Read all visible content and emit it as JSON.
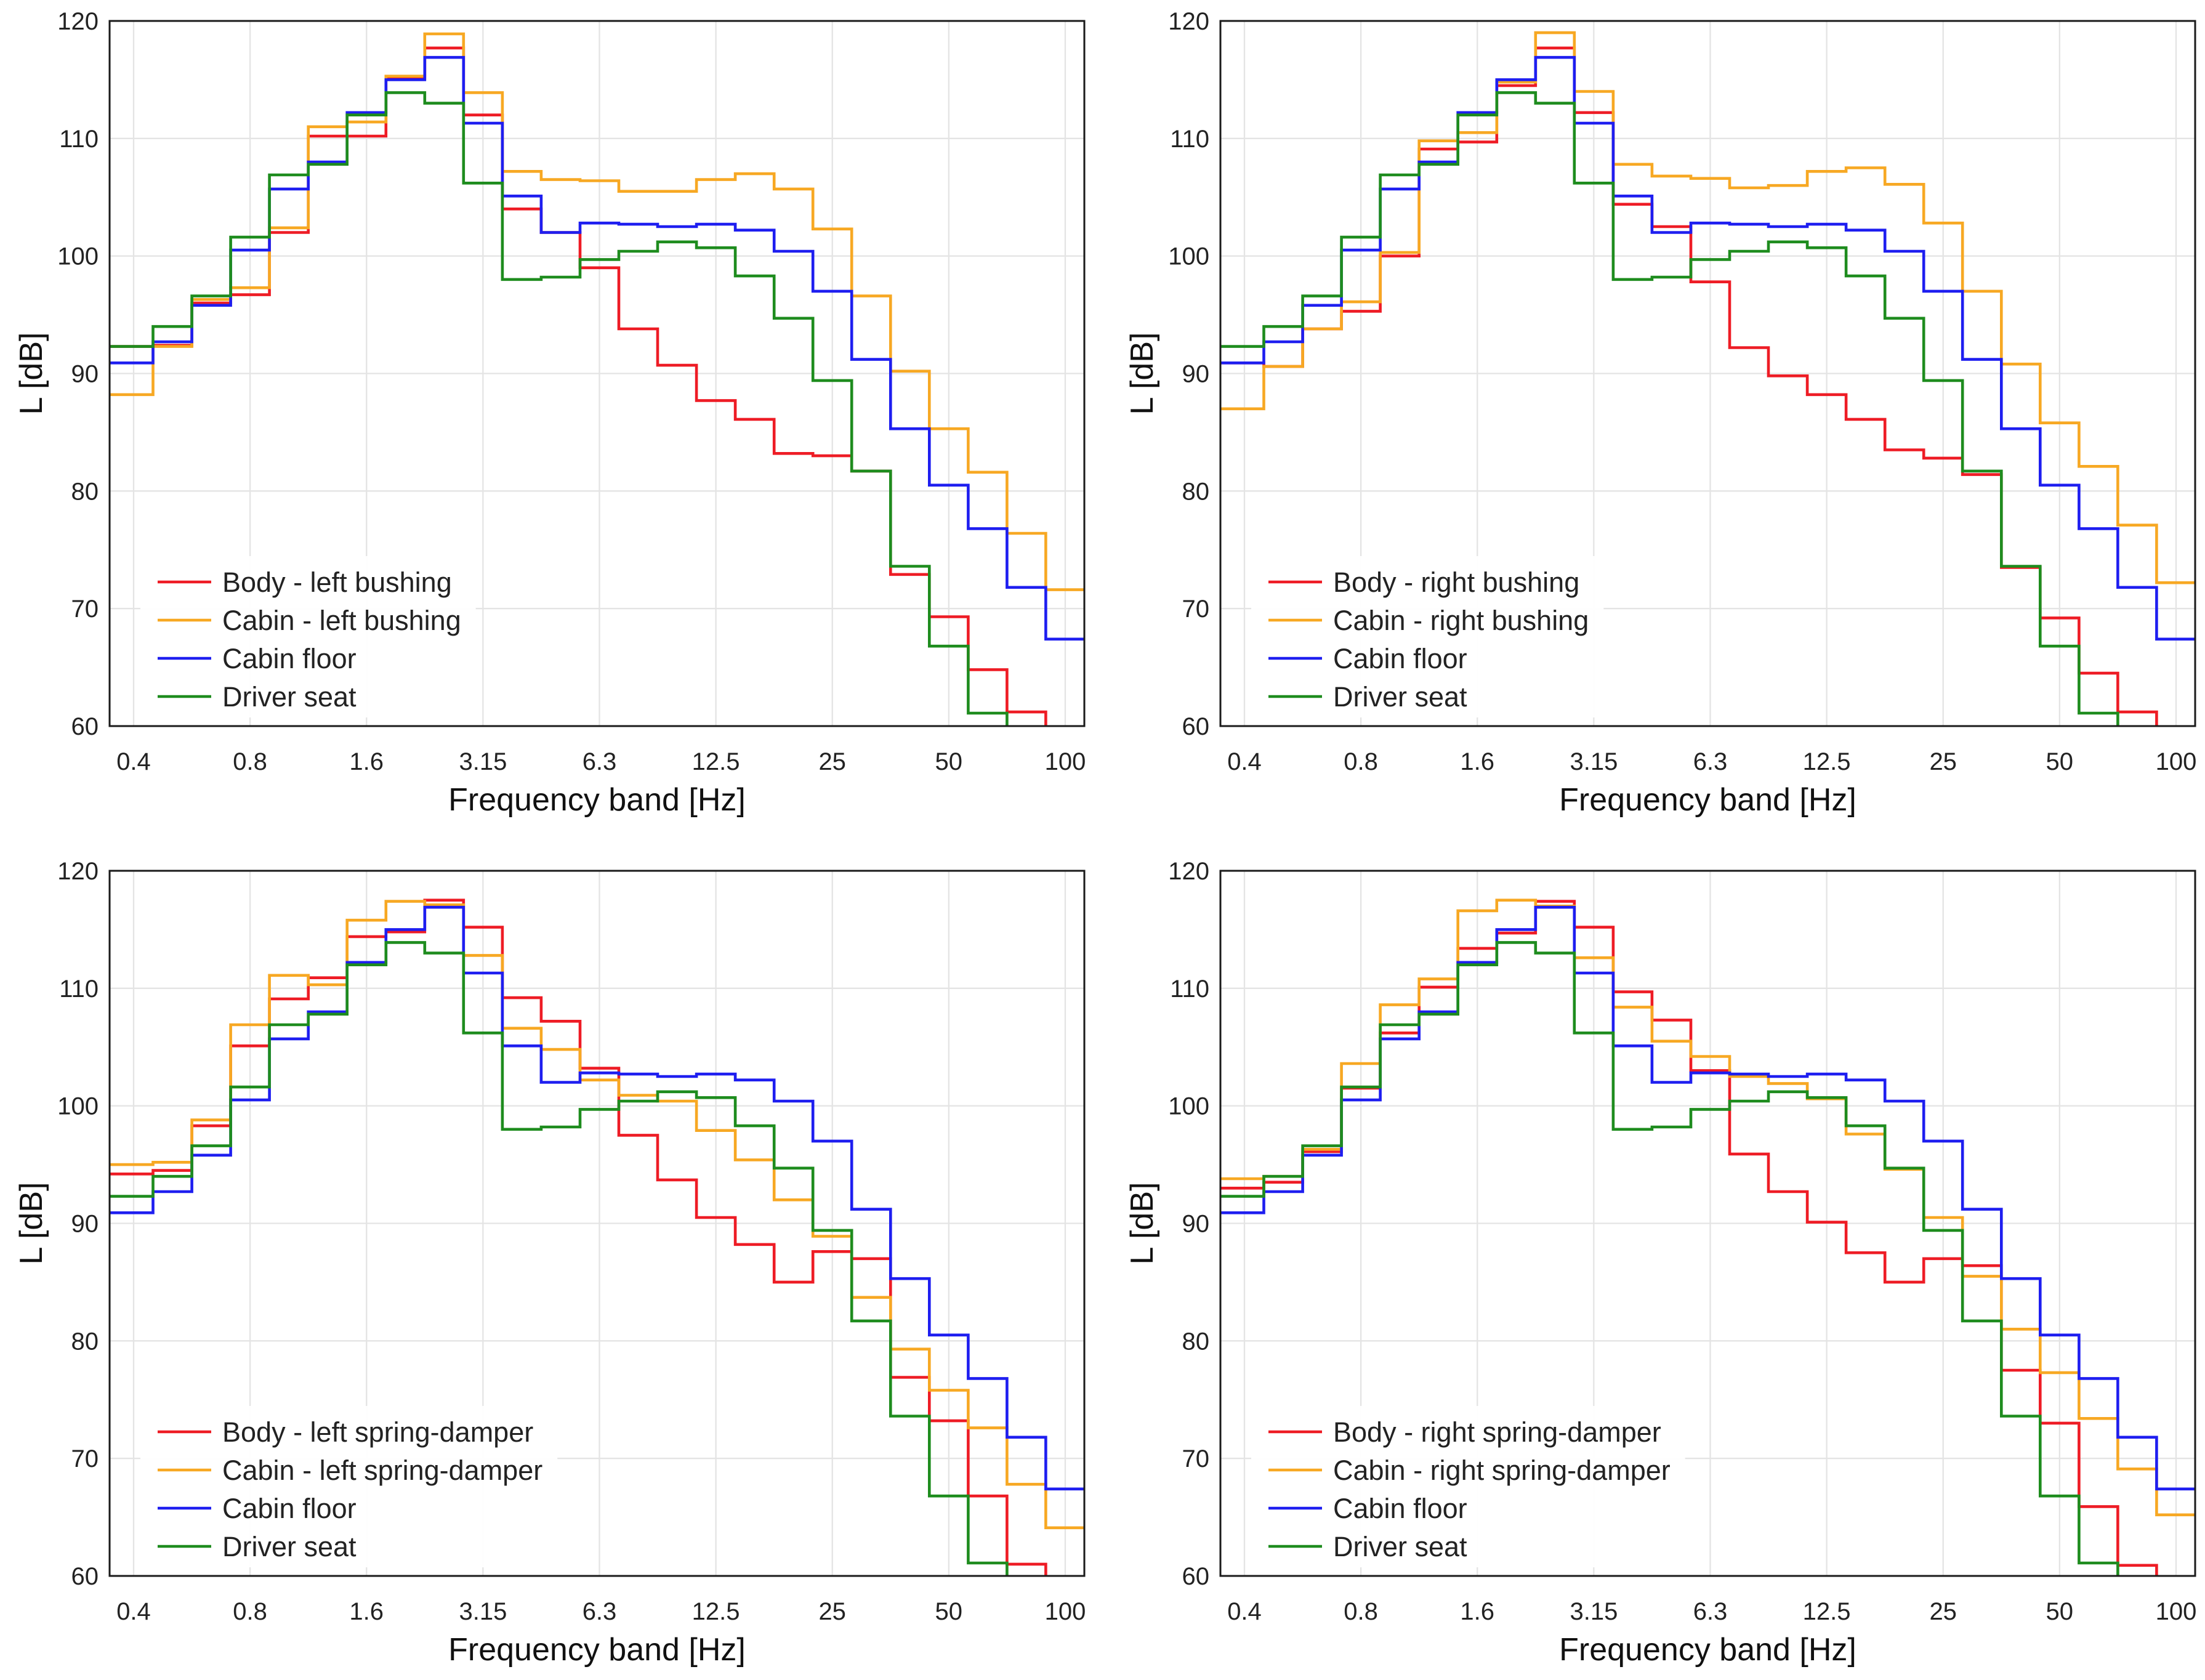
{
  "chart_data": [
    {
      "type": "line",
      "xlabel": "Frequency band [Hz]",
      "ylabel": "L [dB]",
      "ylim": [
        60,
        120
      ],
      "yticks": [
        60,
        70,
        80,
        90,
        100,
        110,
        120
      ],
      "bands": [
        0.4,
        0.5,
        0.63,
        0.8,
        1,
        1.25,
        1.6,
        2,
        2.5,
        3.15,
        4,
        5,
        6.3,
        8,
        10,
        12.5,
        16,
        20,
        25,
        31.5,
        40,
        50,
        63,
        80,
        100
      ],
      "xticks": [
        "0.4",
        "0.8",
        "1.6",
        "3.15",
        "6.3",
        "12.5",
        "25",
        "50",
        "100"
      ],
      "grid": true,
      "legend_position": "lower-left",
      "series": [
        {
          "name": "Body - left bushing",
          "color": "#ee1c25",
          "values": [
            92.3,
            92.4,
            96.0,
            96.7,
            102.0,
            110.2,
            110.2,
            115.1,
            117.7,
            112.0,
            104.0,
            102.0,
            99.0,
            93.8,
            90.7,
            87.7,
            86.1,
            83.2,
            83.0,
            81.7,
            72.9,
            69.3,
            64.8,
            61.2,
            null
          ]
        },
        {
          "name": "Cabin - left bushing",
          "color": "#f7a823",
          "values": [
            88.2,
            92.3,
            96.3,
            97.3,
            102.4,
            111.0,
            111.4,
            115.3,
            118.9,
            113.9,
            107.2,
            106.5,
            106.4,
            105.5,
            105.5,
            106.5,
            107.0,
            105.7,
            102.3,
            96.6,
            90.2,
            85.3,
            81.6,
            76.4,
            71.6
          ]
        },
        {
          "name": "Cabin floor",
          "color": "#1e1ef0",
          "values": [
            90.9,
            92.7,
            95.8,
            100.5,
            105.7,
            108.0,
            112.2,
            115.0,
            116.9,
            111.3,
            105.1,
            102.0,
            102.8,
            102.7,
            102.5,
            102.7,
            102.2,
            100.4,
            97.0,
            91.2,
            85.3,
            80.5,
            76.8,
            71.8,
            67.4
          ]
        },
        {
          "name": "Driver seat",
          "color": "#1e8c1e",
          "values": [
            92.3,
            94.0,
            96.6,
            101.6,
            106.9,
            107.8,
            112.0,
            113.9,
            113.0,
            106.2,
            98.0,
            98.2,
            99.7,
            100.4,
            101.2,
            100.7,
            98.3,
            94.7,
            89.4,
            81.7,
            73.6,
            66.8,
            61.1,
            null,
            null
          ]
        }
      ]
    },
    {
      "type": "line",
      "xlabel": "Frequency band [Hz]",
      "ylabel": "L [dB]",
      "ylim": [
        60,
        120
      ],
      "yticks": [
        60,
        70,
        80,
        90,
        100,
        110,
        120
      ],
      "bands": [
        0.4,
        0.5,
        0.63,
        0.8,
        1,
        1.25,
        1.6,
        2,
        2.5,
        3.15,
        4,
        5,
        6.3,
        8,
        10,
        12.5,
        16,
        20,
        25,
        31.5,
        40,
        50,
        63,
        80,
        100
      ],
      "xticks": [
        "0.4",
        "0.8",
        "1.6",
        "3.15",
        "6.3",
        "12.5",
        "25",
        "50",
        "100"
      ],
      "grid": true,
      "legend_position": "lower-left",
      "series": [
        {
          "name": "Body - right bushing",
          "color": "#ee1c25",
          "values": [
            90.9,
            90.6,
            93.8,
            95.3,
            100.0,
            109.1,
            109.7,
            114.5,
            117.7,
            112.2,
            104.4,
            102.5,
            97.8,
            92.2,
            89.8,
            88.2,
            86.1,
            83.5,
            82.8,
            81.4,
            73.5,
            69.2,
            64.5,
            61.2,
            null
          ]
        },
        {
          "name": "Cabin - right bushing",
          "color": "#f7a823",
          "values": [
            87.0,
            90.6,
            93.8,
            96.1,
            100.3,
            109.8,
            110.5,
            114.8,
            119.0,
            114.0,
            107.8,
            106.8,
            106.6,
            105.8,
            106.0,
            107.2,
            107.5,
            106.1,
            102.8,
            97.0,
            90.8,
            85.8,
            82.1,
            77.1,
            72.2
          ]
        },
        {
          "name": "Cabin floor",
          "color": "#1e1ef0",
          "values": [
            90.9,
            92.7,
            95.8,
            100.5,
            105.7,
            108.0,
            112.2,
            115.0,
            116.9,
            111.3,
            105.1,
            102.0,
            102.8,
            102.7,
            102.5,
            102.7,
            102.2,
            100.4,
            97.0,
            91.2,
            85.3,
            80.5,
            76.8,
            71.8,
            67.4
          ]
        },
        {
          "name": "Driver seat",
          "color": "#1e8c1e",
          "values": [
            92.3,
            94.0,
            96.6,
            101.6,
            106.9,
            107.8,
            112.0,
            113.9,
            113.0,
            106.2,
            98.0,
            98.2,
            99.7,
            100.4,
            101.2,
            100.7,
            98.3,
            94.7,
            89.4,
            81.7,
            73.6,
            66.8,
            61.1,
            null,
            null
          ]
        }
      ]
    },
    {
      "type": "line",
      "xlabel": "Frequency band [Hz]",
      "ylabel": "L [dB]",
      "ylim": [
        60,
        120
      ],
      "yticks": [
        60,
        70,
        80,
        90,
        100,
        110,
        120
      ],
      "bands": [
        0.4,
        0.5,
        0.63,
        0.8,
        1,
        1.25,
        1.6,
        2,
        2.5,
        3.15,
        4,
        5,
        6.3,
        8,
        10,
        12.5,
        16,
        20,
        25,
        31.5,
        40,
        50,
        63,
        80,
        100
      ],
      "xticks": [
        "0.4",
        "0.8",
        "1.6",
        "3.15",
        "6.3",
        "12.5",
        "25",
        "50",
        "100"
      ],
      "grid": true,
      "legend_position": "lower-left",
      "series": [
        {
          "name": "Body - left spring-damper",
          "color": "#ee1c25",
          "values": [
            94.2,
            94.5,
            98.3,
            105.1,
            109.1,
            110.9,
            114.4,
            114.8,
            117.5,
            115.2,
            109.2,
            107.2,
            103.2,
            97.5,
            93.7,
            90.5,
            88.2,
            85.0,
            87.6,
            87.0,
            76.9,
            73.2,
            66.8,
            61.0,
            null
          ]
        },
        {
          "name": "Cabin - left spring-damper",
          "color": "#f7a823",
          "values": [
            95.0,
            95.2,
            98.8,
            106.9,
            111.1,
            110.3,
            115.8,
            117.4,
            117.1,
            112.8,
            106.6,
            104.8,
            102.2,
            100.9,
            100.4,
            97.9,
            95.4,
            92.0,
            88.9,
            83.7,
            79.3,
            75.8,
            72.6,
            67.8,
            64.1
          ]
        },
        {
          "name": "Cabin floor",
          "color": "#1e1ef0",
          "values": [
            90.9,
            92.7,
            95.8,
            100.5,
            105.7,
            108.0,
            112.2,
            115.0,
            116.9,
            111.3,
            105.1,
            102.0,
            102.8,
            102.7,
            102.5,
            102.7,
            102.2,
            100.4,
            97.0,
            91.2,
            85.3,
            80.5,
            76.8,
            71.8,
            67.4
          ]
        },
        {
          "name": "Driver seat",
          "color": "#1e8c1e",
          "values": [
            92.3,
            94.0,
            96.6,
            101.6,
            106.9,
            107.8,
            112.0,
            113.9,
            113.0,
            106.2,
            98.0,
            98.2,
            99.7,
            100.4,
            101.2,
            100.7,
            98.3,
            94.7,
            89.4,
            81.7,
            73.6,
            66.8,
            61.1,
            null,
            null
          ]
        }
      ]
    },
    {
      "type": "line",
      "xlabel": "Frequency band [Hz]",
      "ylabel": "L [dB]",
      "ylim": [
        60,
        120
      ],
      "yticks": [
        60,
        70,
        80,
        90,
        100,
        110,
        120
      ],
      "bands": [
        0.4,
        0.5,
        0.63,
        0.8,
        1,
        1.25,
        1.6,
        2,
        2.5,
        3.15,
        4,
        5,
        6.3,
        8,
        10,
        12.5,
        16,
        20,
        25,
        31.5,
        40,
        50,
        63,
        80,
        100
      ],
      "xticks": [
        "0.4",
        "0.8",
        "1.6",
        "3.15",
        "6.3",
        "12.5",
        "25",
        "50",
        "100"
      ],
      "grid": true,
      "legend_position": "lower-left",
      "series": [
        {
          "name": "Body - right spring-damper",
          "color": "#ee1c25",
          "values": [
            93.0,
            93.5,
            96.1,
            101.5,
            106.2,
            110.1,
            113.4,
            114.7,
            117.4,
            115.2,
            109.7,
            107.3,
            103.0,
            95.9,
            92.7,
            90.1,
            87.5,
            85.0,
            87.0,
            86.4,
            77.5,
            73.0,
            65.9,
            60.9,
            null
          ]
        },
        {
          "name": "Cabin - right spring-damper",
          "color": "#f7a823",
          "values": [
            93.8,
            94.0,
            96.3,
            103.6,
            108.6,
            110.8,
            116.6,
            117.5,
            117.0,
            112.6,
            108.4,
            105.5,
            104.2,
            102.5,
            101.9,
            100.6,
            97.6,
            94.6,
            90.5,
            85.5,
            81.0,
            77.3,
            73.4,
            69.1,
            65.2
          ]
        },
        {
          "name": "Cabin floor",
          "color": "#1e1ef0",
          "values": [
            90.9,
            92.7,
            95.8,
            100.5,
            105.7,
            108.0,
            112.2,
            115.0,
            116.9,
            111.3,
            105.1,
            102.0,
            102.8,
            102.7,
            102.5,
            102.7,
            102.2,
            100.4,
            97.0,
            91.2,
            85.3,
            80.5,
            76.8,
            71.8,
            67.4
          ]
        },
        {
          "name": "Driver seat",
          "color": "#1e8c1e",
          "values": [
            92.3,
            94.0,
            96.6,
            101.6,
            106.9,
            107.8,
            112.0,
            113.9,
            113.0,
            106.2,
            98.0,
            98.2,
            99.7,
            100.4,
            101.2,
            100.7,
            98.3,
            94.7,
            89.4,
            81.7,
            73.6,
            66.8,
            61.1,
            null,
            null
          ]
        }
      ]
    }
  ]
}
